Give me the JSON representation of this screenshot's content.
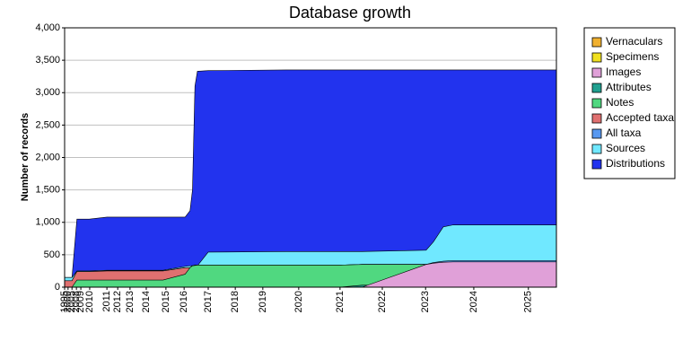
{
  "chart_data": {
    "type": "area",
    "title": "Database growth",
    "y_label": "Number of records",
    "x": [
      0,
      1.5,
      2.5,
      5,
      8.6,
      20,
      24.5,
      25.5,
      26,
      26.5,
      27,
      29.2,
      45,
      56,
      60.5,
      73.5,
      75,
      77,
      79,
      83,
      100
    ],
    "xlim": [
      0,
      100
    ],
    "xticks": [
      {
        "value": 0,
        "label": "1995"
      },
      {
        "value": 0.7,
        "label": "2000"
      },
      {
        "value": 1.5,
        "label": "2005"
      },
      {
        "value": 2.4,
        "label": "2008"
      },
      {
        "value": 3.3,
        "label": "2009"
      },
      {
        "value": 5.1,
        "label": "2010"
      },
      {
        "value": 8.6,
        "label": "2011"
      },
      {
        "value": 10.8,
        "label": "2012"
      },
      {
        "value": 13.3,
        "label": "2013"
      },
      {
        "value": 16.6,
        "label": "2014"
      },
      {
        "value": 20.6,
        "label": "2015"
      },
      {
        "value": 24.3,
        "label": "2016"
      },
      {
        "value": 29.2,
        "label": "2017"
      },
      {
        "value": 34.7,
        "label": "2018"
      },
      {
        "value": 40.3,
        "label": "2019"
      },
      {
        "value": 47.6,
        "label": "2020"
      },
      {
        "value": 56.0,
        "label": "2021"
      },
      {
        "value": 64.6,
        "label": "2022"
      },
      {
        "value": 73.4,
        "label": "2023"
      },
      {
        "value": 83.2,
        "label": "2024"
      },
      {
        "value": 94.3,
        "label": "2025"
      }
    ],
    "ylim": [
      0,
      4000
    ],
    "yticks": [
      0,
      500,
      {
        "value": 1000,
        "label": "1,000"
      },
      {
        "value": 1500,
        "label": "1,500"
      },
      {
        "value": 2000,
        "label": "2,000"
      },
      {
        "value": 2500,
        "label": "2,500"
      },
      {
        "value": 3000,
        "label": "3,000"
      },
      {
        "value": 3500,
        "label": "3,500"
      },
      {
        "value": 4000,
        "label": "4,000"
      }
    ],
    "grid": true,
    "legend": "right",
    "series": [
      {
        "name": "Vernaculars",
        "color": "#f0b030",
        "values": [
          0,
          0,
          0,
          0,
          0,
          0,
          0,
          0,
          0,
          0,
          0,
          0,
          0,
          0,
          0,
          0,
          0,
          0,
          0,
          0,
          0
        ]
      },
      {
        "name": "Specimens",
        "color": "#f0e020",
        "values": [
          0,
          0,
          0,
          0,
          0,
          0,
          0,
          0,
          0,
          0,
          0,
          0,
          0,
          0,
          0,
          0,
          0,
          0,
          0,
          0,
          0
        ]
      },
      {
        "name": "Images",
        "color": "#e0a0d8",
        "values": [
          0,
          0,
          0,
          0,
          0,
          0,
          0,
          0,
          0,
          0,
          0,
          0,
          0,
          0,
          0,
          350,
          370,
          385,
          390,
          390,
          390
        ]
      },
      {
        "name": "Attributes",
        "color": "#20a090",
        "values": [
          0,
          0,
          0,
          0,
          0,
          0,
          0,
          0,
          0,
          0,
          0,
          0,
          0,
          0,
          30,
          30,
          35,
          35,
          35,
          40,
          40
        ]
      },
      {
        "name": "Notes",
        "color": "#50d880",
        "values": [
          0,
          0,
          110,
          110,
          110,
          110,
          200,
          300,
          330,
          335,
          340,
          340,
          340,
          340,
          350,
          350,
          350,
          350,
          350,
          350,
          350
        ]
      },
      {
        "name": "Accepted taxa",
        "color": "#e07070",
        "values": [
          100,
          100,
          240,
          240,
          250,
          250,
          300,
          300,
          330,
          340,
          340,
          340,
          340,
          340,
          350,
          350,
          350,
          360,
          370,
          370,
          370
        ]
      },
      {
        "name": "All taxa",
        "color": "#5898f0",
        "values": [
          100,
          100,
          240,
          240,
          250,
          250,
          300,
          300,
          330,
          340,
          340,
          340,
          340,
          340,
          350,
          350,
          380,
          400,
          410,
          410,
          410
        ]
      },
      {
        "name": "Sources",
        "color": "#70e8ff",
        "values": [
          150,
          150,
          250,
          250,
          260,
          260,
          320,
          330,
          330,
          330,
          330,
          540,
          550,
          550,
          550,
          570,
          700,
          930,
          960,
          960,
          960
        ]
      },
      {
        "name": "Distributions",
        "color": "#2233ee",
        "values": [
          150,
          150,
          1050,
          1050,
          1080,
          1080,
          1080,
          1180,
          1500,
          3100,
          3330,
          3340,
          3350,
          3350,
          3350,
          3350,
          3350,
          3350,
          3350,
          3350,
          3350
        ]
      }
    ]
  }
}
